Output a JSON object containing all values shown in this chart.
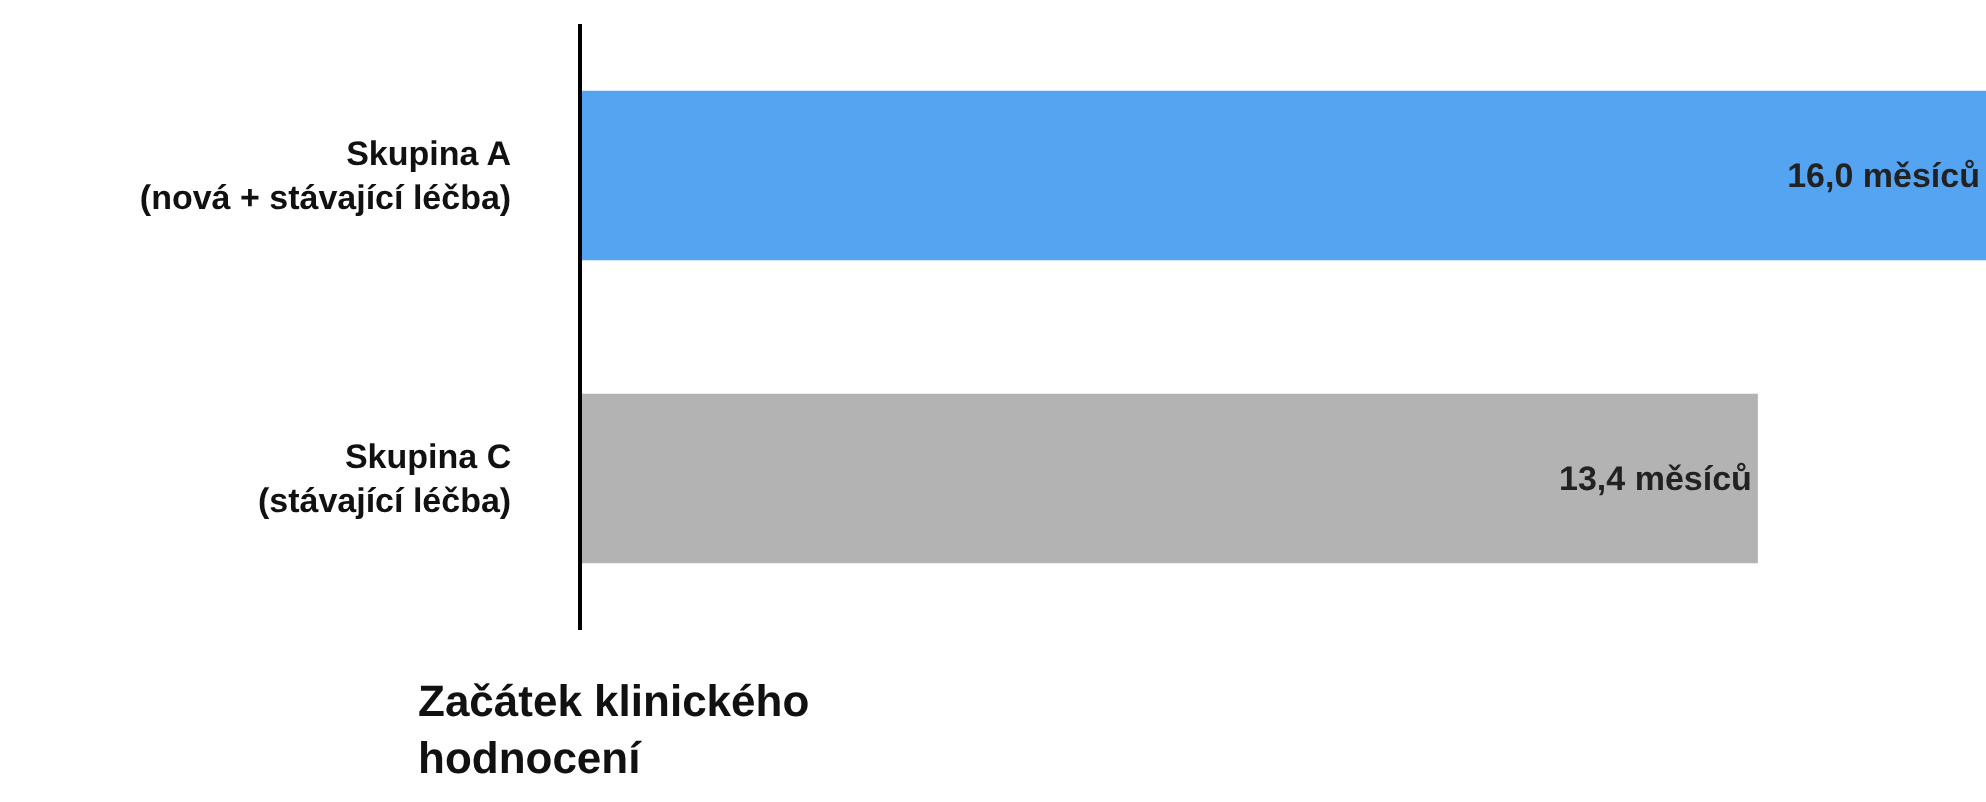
{
  "chart_data": {
    "type": "bar",
    "orientation": "horizontal",
    "categories": [
      "Skupina A\n(nová + stávající léčba)",
      "Skupina C\n(stávající léčba)"
    ],
    "values": [
      16.0,
      13.4
    ],
    "colors": [
      "#55a4f2",
      "#b3b3b3"
    ],
    "value_labels": [
      "16,0 měsíců",
      "13,4 měsíců"
    ],
    "xlim": [
      0,
      16.0
    ],
    "tick_labels": "y",
    "annotations": [
      "Začátek klinického\nhodnocení"
    ]
  }
}
